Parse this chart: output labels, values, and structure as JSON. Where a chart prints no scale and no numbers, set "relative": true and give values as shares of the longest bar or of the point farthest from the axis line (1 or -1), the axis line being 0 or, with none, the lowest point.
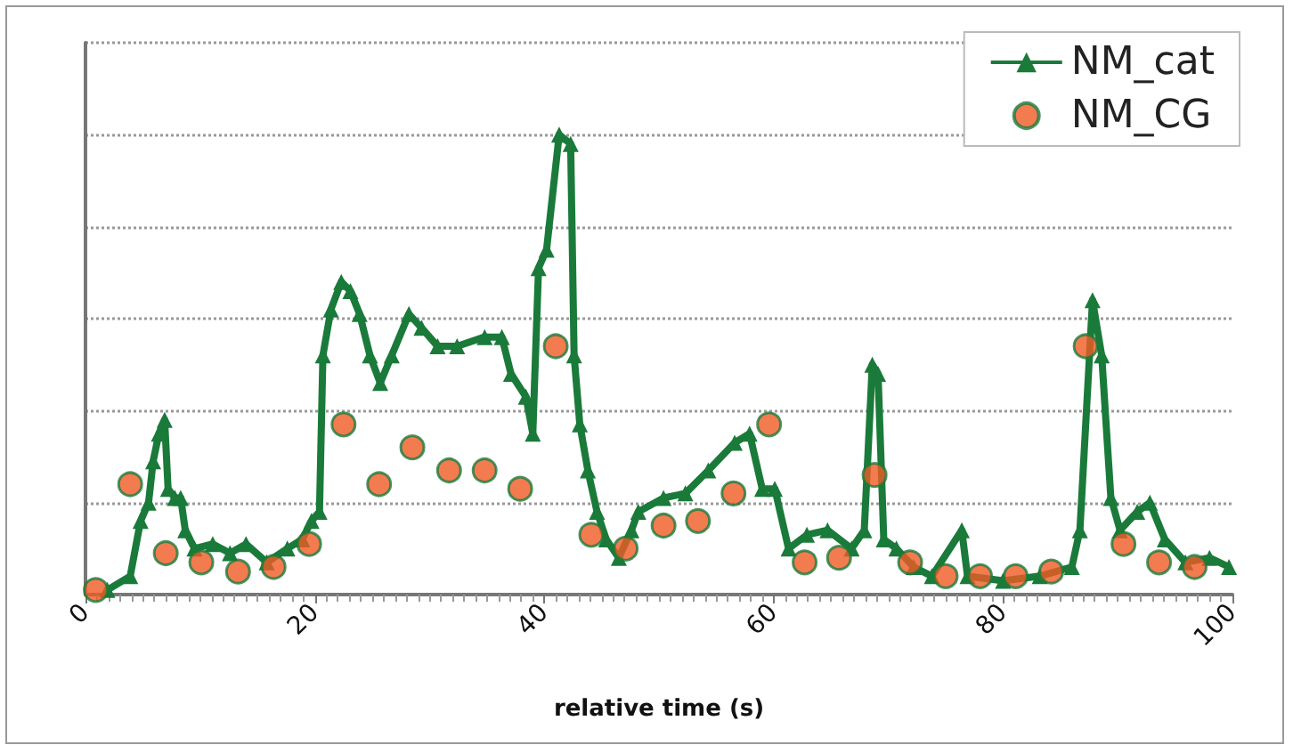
{
  "chart_data": {
    "type": "line",
    "relative": true,
    "xlabel": "relative time (s)",
    "xlim": [
      0,
      100
    ],
    "xticks": [
      0,
      20,
      40,
      60,
      80,
      100
    ],
    "grid": "y",
    "legend": "top right",
    "tick_labels": "x",
    "series": [
      {
        "name": "NM_cat",
        "type": "line",
        "marker": "triangle",
        "line_style": "solid",
        "color": "#1a7a3a",
        "x": [
          1.9,
          3.9,
          4.8,
          5.5,
          5.9,
          6.4,
          6.9,
          7.2,
          7.8,
          8.3,
          8.7,
          9.5,
          11.1,
          12.6,
          14.0,
          15.8,
          17.6,
          18.9,
          19.7,
          20.4,
          20.7,
          21.4,
          22.3,
          23.1,
          23.9,
          24.8,
          25.7,
          26.7,
          28.2,
          29.3,
          30.7,
          32.4,
          34.8,
          36.3,
          37.1,
          38.4,
          39.0,
          39.5,
          40.2,
          41.3,
          42.3,
          42.6,
          43.1,
          43.8,
          44.6,
          45.4,
          46.5,
          47.6,
          48.2,
          50.4,
          52.3,
          54.3,
          56.6,
          57.9,
          59.0,
          60.1,
          61.3,
          62.9,
          64.7,
          66.8,
          67.9,
          68.6,
          69.1,
          69.6,
          70.7,
          72.2,
          73.8,
          76.4,
          76.9,
          80.0,
          83.2,
          86.0,
          86.7,
          87.8,
          88.6,
          89.4,
          90.2,
          91.7,
          92.8,
          94.1,
          95.9,
          98.0,
          99.7
        ],
        "values": [
          0.01,
          0.04,
          0.16,
          0.2,
          0.29,
          0.35,
          0.38,
          0.23,
          0.21,
          0.21,
          0.14,
          0.1,
          0.11,
          0.09,
          0.11,
          0.07,
          0.1,
          0.12,
          0.16,
          0.18,
          0.52,
          0.62,
          0.68,
          0.66,
          0.61,
          0.52,
          0.46,
          0.52,
          0.61,
          0.58,
          0.54,
          0.54,
          0.56,
          0.56,
          0.48,
          0.43,
          0.35,
          0.71,
          0.75,
          1.0,
          0.98,
          0.52,
          0.37,
          0.27,
          0.18,
          0.12,
          0.08,
          0.14,
          0.18,
          0.21,
          0.22,
          0.27,
          0.33,
          0.35,
          0.23,
          0.23,
          0.1,
          0.13,
          0.14,
          0.1,
          0.14,
          0.5,
          0.48,
          0.12,
          0.1,
          0.06,
          0.04,
          0.14,
          0.04,
          0.03,
          0.04,
          0.06,
          0.14,
          0.64,
          0.52,
          0.21,
          0.14,
          0.18,
          0.2,
          0.12,
          0.07,
          0.08,
          0.06
        ]
      },
      {
        "name": "NM_CG",
        "type": "scatter",
        "marker": "circle",
        "color": "#f05a24",
        "x": [
          0.9,
          3.9,
          7.0,
          10.1,
          13.3,
          16.4,
          19.5,
          22.5,
          25.6,
          28.5,
          31.7,
          34.8,
          37.9,
          41.0,
          44.1,
          47.1,
          50.4,
          53.4,
          56.5,
          59.6,
          62.7,
          65.7,
          68.8,
          71.9,
          75.0,
          78.0,
          81.1,
          84.2,
          87.2,
          90.5,
          93.6,
          96.7
        ],
        "values": [
          0.01,
          0.24,
          0.09,
          0.07,
          0.05,
          0.06,
          0.11,
          0.37,
          0.24,
          0.32,
          0.27,
          0.27,
          0.23,
          0.54,
          0.13,
          0.1,
          0.15,
          0.16,
          0.22,
          0.37,
          0.07,
          0.08,
          0.26,
          0.07,
          0.04,
          0.04,
          0.04,
          0.05,
          0.54,
          0.11,
          0.07,
          0.06
        ]
      }
    ]
  }
}
